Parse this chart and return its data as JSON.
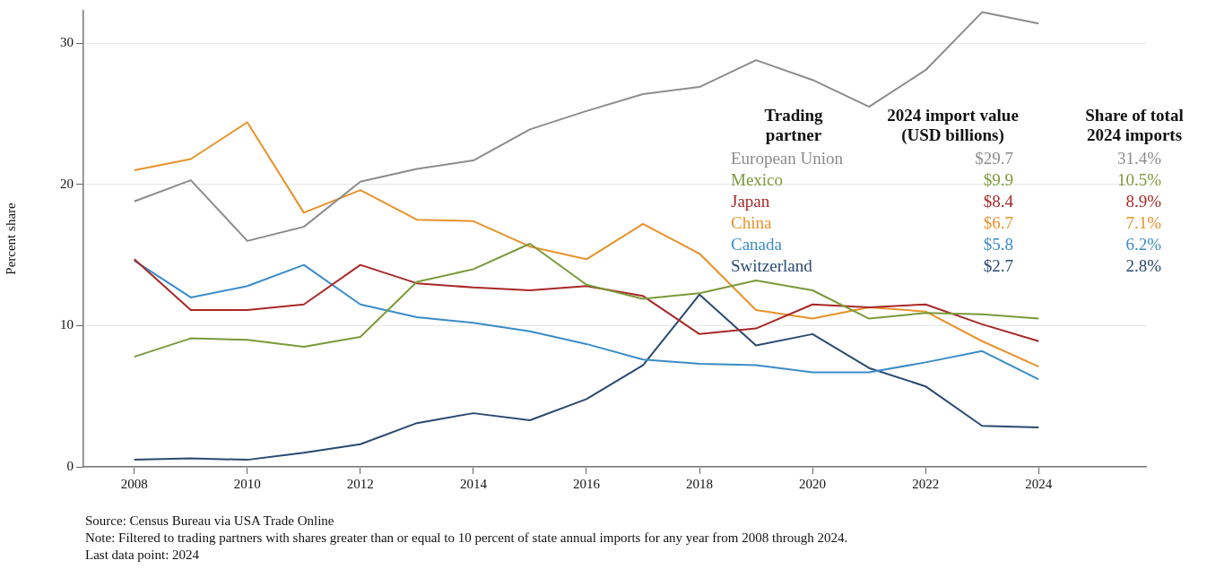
{
  "chart_data": {
    "type": "line",
    "ylabel": "Percent share",
    "x": [
      2008,
      2009,
      2010,
      2011,
      2012,
      2013,
      2014,
      2015,
      2016,
      2017,
      2018,
      2019,
      2020,
      2021,
      2022,
      2023,
      2024
    ],
    "xlim": [
      2007.1,
      2025.9
    ],
    "xticks": [
      2008,
      2010,
      2012,
      2014,
      2016,
      2018,
      2020,
      2022,
      2024
    ],
    "ylim": [
      0,
      32.3
    ],
    "yticks": [
      0,
      10,
      20,
      30
    ],
    "grid": "y",
    "legend": false,
    "marker": "none",
    "line_style": "solid",
    "series": [
      {
        "name": "European Union",
        "color": "#8c8c8c",
        "values": [
          18.8,
          20.3,
          16.0,
          17.0,
          20.2,
          21.1,
          21.7,
          23.9,
          25.2,
          26.4,
          26.9,
          28.8,
          27.4,
          25.5,
          28.1,
          32.2,
          31.4
        ]
      },
      {
        "name": "Mexico",
        "color": "#7a9a3a",
        "values": [
          7.8,
          9.1,
          9.0,
          8.5,
          9.2,
          13.1,
          14.0,
          15.8,
          12.9,
          11.9,
          12.3,
          13.2,
          12.5,
          10.5,
          10.9,
          10.8,
          10.5
        ]
      },
      {
        "name": "Japan",
        "color": "#a82828",
        "values": [
          14.7,
          11.1,
          11.1,
          11.5,
          14.3,
          13.0,
          12.7,
          12.5,
          12.8,
          12.1,
          9.4,
          9.8,
          11.5,
          11.3,
          11.5,
          10.1,
          8.9
        ]
      },
      {
        "name": "China",
        "color": "#e8922a",
        "values": [
          21.0,
          21.8,
          24.4,
          18.0,
          19.6,
          17.5,
          17.4,
          15.6,
          14.7,
          17.2,
          15.1,
          11.1,
          10.5,
          11.3,
          11.0,
          8.9,
          7.1
        ]
      },
      {
        "name": "Canada",
        "color": "#3a8cc8",
        "values": [
          14.6,
          12.0,
          12.8,
          14.3,
          11.5,
          10.6,
          10.2,
          9.6,
          8.7,
          7.6,
          7.3,
          7.2,
          6.7,
          6.7,
          7.4,
          8.2,
          6.2
        ]
      },
      {
        "name": "Switzerland",
        "color": "#2a4a70",
        "values": [
          0.5,
          0.6,
          0.5,
          1.0,
          1.6,
          3.1,
          3.8,
          3.3,
          4.8,
          7.2,
          12.2,
          8.6,
          9.4,
          7.0,
          5.7,
          2.9,
          2.8
        ]
      }
    ],
    "annotations": [
      "Trading partner",
      "2024 import value (USD billions)",
      "Share of total 2024 imports",
      "$29.7",
      "31.4%",
      "$9.9",
      "10.5%",
      "$8.4",
      "8.9%",
      "$6.7",
      "7.1%",
      "$5.8",
      "6.2%",
      "$2.7",
      "2.8%",
      "Source: Census Bureau via USA Trade Online",
      "Note: Filtered to trading partners with shares greater than or equal to 10 percent of state annual imports for any year from 2008 through 2024.",
      "Last data point: 2024"
    ]
  }
}
